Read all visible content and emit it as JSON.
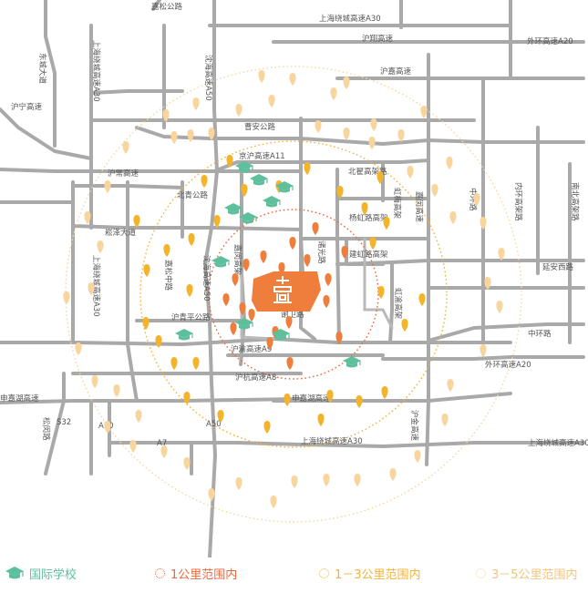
{
  "colors": {
    "road": "#a9a9a9",
    "label": "#555555",
    "school": "#5ebf9d",
    "core_pin": "#ef7d3c",
    "mid_pin": "#f3b42c",
    "outer_pin": "#f7d59c",
    "center_block": "#ef7d3c",
    "ring1": "#e8683a",
    "ring2": "#f2b33a",
    "ring3": "#f5d8a4"
  },
  "road_labels": [
    {
      "text": "上海绕城高速A30",
      "orient": "h"
    },
    {
      "text": "沪翔高速",
      "orient": "h"
    },
    {
      "text": "外环高速A20",
      "orient": "h"
    },
    {
      "text": "沪嘉高速",
      "orient": "h"
    },
    {
      "text": "嘉松公路",
      "orient": "h"
    },
    {
      "text": "东城大道",
      "orient": "v"
    },
    {
      "text": "上海绕城高速A30",
      "orient": "v"
    },
    {
      "text": "沈海高速A50",
      "orient": "v"
    },
    {
      "text": "沪宁高速",
      "orient": "h"
    },
    {
      "text": "曹安公路",
      "orient": "h"
    },
    {
      "text": "京沪高速A11",
      "orient": "h"
    },
    {
      "text": "北翟高架路",
      "orient": "h"
    },
    {
      "text": "沪常高速",
      "orient": "h"
    },
    {
      "text": "北青公路",
      "orient": "h"
    },
    {
      "text": "虹梅高架",
      "orient": "v"
    },
    {
      "text": "内环高架路",
      "orient": "v"
    },
    {
      "text": "南北高架路",
      "orient": "v"
    },
    {
      "text": "杨虹路高架",
      "orient": "h"
    },
    {
      "text": "崧泽大道",
      "orient": "h"
    },
    {
      "text": "中环路",
      "orient": "v"
    },
    {
      "text": "嘉闵高速",
      "orient": "v"
    },
    {
      "text": "诸光路",
      "orient": "v"
    },
    {
      "text": "建虹路高架",
      "orient": "h"
    },
    {
      "text": "嘉松中路",
      "orient": "v"
    },
    {
      "text": "沈海高速A50",
      "orient": "v"
    },
    {
      "text": "延安西路",
      "orient": "h"
    },
    {
      "text": "嘉闵高架",
      "orient": "v"
    },
    {
      "text": "虹渝高架",
      "orient": "v"
    },
    {
      "text": "上海绕城高速A30",
      "orient": "v"
    },
    {
      "text": "沪青平公路",
      "orient": "h"
    },
    {
      "text": "谢卫路",
      "orient": "h"
    },
    {
      "text": "中环路",
      "orient": "h"
    },
    {
      "text": "沪渝高速A9",
      "orient": "h"
    },
    {
      "text": "外环高速A20",
      "orient": "h"
    },
    {
      "text": "沪杭高速A8",
      "orient": "h"
    },
    {
      "text": "申嘉湖高速",
      "orient": "h"
    },
    {
      "text": "申嘉湖高速",
      "orient": "h"
    },
    {
      "text": "松闵路",
      "orient": "v"
    },
    {
      "text": "S32",
      "orient": "h"
    },
    {
      "text": "沪金高速",
      "orient": "v"
    },
    {
      "text": "A30",
      "orient": "h"
    },
    {
      "text": "A7",
      "orient": "h"
    },
    {
      "text": "A50",
      "orient": "h"
    },
    {
      "text": "上海绕城高速A30",
      "orient": "h"
    },
    {
      "text": "上海绕城高速A30",
      "orient": "h"
    }
  ],
  "legend": [
    {
      "key": "school",
      "icon": "graduation-cap-icon",
      "text": "国际学校",
      "color": "#5ebf9d"
    },
    {
      "key": "ring1",
      "icon": "dotted-ring-icon",
      "text": "1公里范围内",
      "color": "#e8683a"
    },
    {
      "key": "ring2",
      "icon": "dotted-ring-icon",
      "text": "1－3公里范围内",
      "color": "#f2b33a"
    },
    {
      "key": "ring3",
      "icon": "dotted-ring-icon",
      "text": "3－5公里范围内",
      "color": "#f5d8a4"
    }
  ]
}
